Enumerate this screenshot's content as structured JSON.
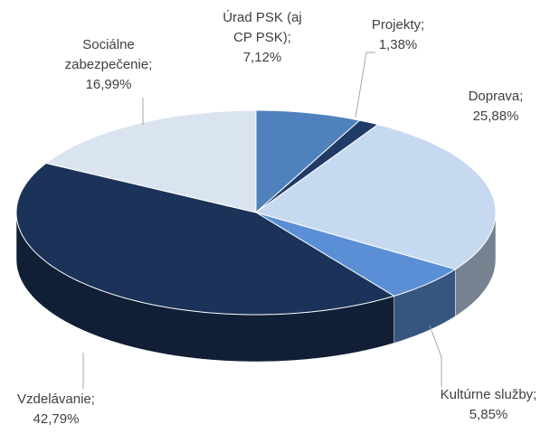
{
  "chart_data": {
    "type": "pie3d",
    "categories": [
      "Úrad PSK (aj CP PSK);",
      "Projekty;",
      "Doprava;",
      "Kultúrne služby;",
      "Vzdelávanie;",
      "Sociálne zabezpečenie;"
    ],
    "values": [
      7.12,
      1.38,
      25.88,
      5.85,
      42.79,
      16.99
    ],
    "value_labels": [
      "7,12%",
      "1,38%",
      "25,88%",
      "5,85%",
      "42,79%",
      "16,99%"
    ],
    "colors": [
      "#4f81bd",
      "#1f3b66",
      "#c6d9f0",
      "#5a8fd6",
      "#1b3358",
      "#dae4f1"
    ]
  }
}
